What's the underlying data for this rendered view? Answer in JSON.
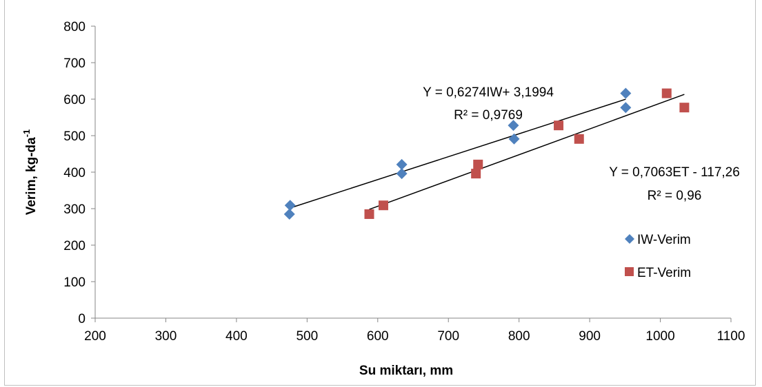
{
  "chart_data": {
    "type": "scatter",
    "xlabel": "Su miktarı, mm",
    "ylabel": "Verim, kg-da",
    "ylabel_sup": "-1",
    "xlim": [
      200,
      1100
    ],
    "ylim": [
      0,
      800
    ],
    "x_ticks": [
      200,
      300,
      400,
      500,
      600,
      700,
      800,
      900,
      1000,
      1100
    ],
    "y_ticks": [
      0,
      100,
      200,
      300,
      400,
      500,
      600,
      700,
      800
    ],
    "grid": false,
    "legend_position": "right",
    "series": [
      {
        "name": "IW-Verim",
        "marker": "diamond",
        "color": "#4f81bd",
        "points": [
          {
            "x": 476,
            "y": 309
          },
          {
            "x": 475,
            "y": 285
          },
          {
            "x": 634,
            "y": 421
          },
          {
            "x": 634,
            "y": 396
          },
          {
            "x": 792,
            "y": 528
          },
          {
            "x": 793,
            "y": 491
          },
          {
            "x": 951,
            "y": 616
          },
          {
            "x": 951,
            "y": 577
          }
        ],
        "trendline": {
          "slope": 0.6274,
          "intercept": 3.1994,
          "x_range": [
            475,
            951
          ]
        }
      },
      {
        "name": "ET-Verim",
        "marker": "square",
        "color": "#c0504d",
        "points": [
          {
            "x": 588,
            "y": 285
          },
          {
            "x": 608,
            "y": 309
          },
          {
            "x": 739,
            "y": 396
          },
          {
            "x": 742,
            "y": 421
          },
          {
            "x": 856,
            "y": 528
          },
          {
            "x": 885,
            "y": 491
          },
          {
            "x": 1009,
            "y": 616
          },
          {
            "x": 1034,
            "y": 577
          }
        ],
        "trendline": {
          "slope": 0.7063,
          "intercept": -117.26,
          "x_range": [
            588,
            1034
          ]
        }
      }
    ],
    "annotations": [
      {
        "text": "Y = 0,6274IW+ 3,1994",
        "series": "IW-Verim"
      },
      {
        "text": "R² = 0,9769",
        "series": "IW-Verim"
      },
      {
        "text": "Y = 0,7063ET - 117,26",
        "series": "ET-Verim"
      },
      {
        "text": "R² = 0,96",
        "series": "ET-Verim"
      }
    ]
  },
  "colors": {
    "axis": "#868686",
    "trendline": "#000000"
  }
}
